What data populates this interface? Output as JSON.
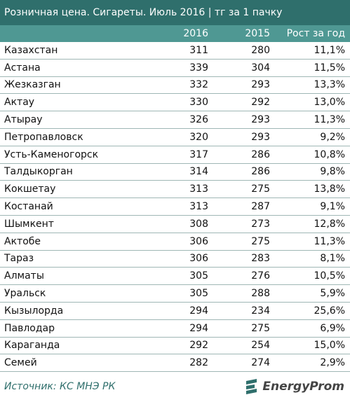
{
  "header": {
    "title": "Розничная цена. Сигареты. Июль 2016 | тг за 1 пачку"
  },
  "table": {
    "columns": [
      "2016",
      "2015",
      "Рост за год"
    ],
    "rows": [
      [
        "Казахстан",
        311,
        280,
        "11,1%"
      ],
      [
        "Астана",
        339,
        304,
        "11,5%"
      ],
      [
        "Жезказган",
        332,
        293,
        "13,3%"
      ],
      [
        "Актау",
        330,
        292,
        "13,0%"
      ],
      [
        "Атырау",
        326,
        293,
        "11,3%"
      ],
      [
        "Петропавловск",
        320,
        293,
        "9,2%"
      ],
      [
        "Усть-Каменогорск",
        317,
        286,
        "10,8%"
      ],
      [
        "Талдыкорган",
        314,
        286,
        "9,8%"
      ],
      [
        "Кокшетау",
        313,
        275,
        "13,8%"
      ],
      [
        "Костанай",
        313,
        287,
        "9,1%"
      ],
      [
        "Шымкент",
        308,
        273,
        "12,8%"
      ],
      [
        "Актобе",
        306,
        275,
        "11,3%"
      ],
      [
        "Тараз",
        306,
        283,
        "8,1%"
      ],
      [
        "Алматы",
        305,
        276,
        "10,5%"
      ],
      [
        "Уральск",
        305,
        288,
        "5,9%"
      ],
      [
        "Кызылорда",
        294,
        234,
        "25,6%"
      ],
      [
        "Павлодар",
        294,
        275,
        "6,9%"
      ],
      [
        "Караганда",
        292,
        254,
        "15,0%"
      ],
      [
        "Семей",
        282,
        274,
        "2,9%"
      ]
    ]
  },
  "footer": {
    "source": "Источник: КС МНЭ РК",
    "logo": "EnergyProm"
  }
}
